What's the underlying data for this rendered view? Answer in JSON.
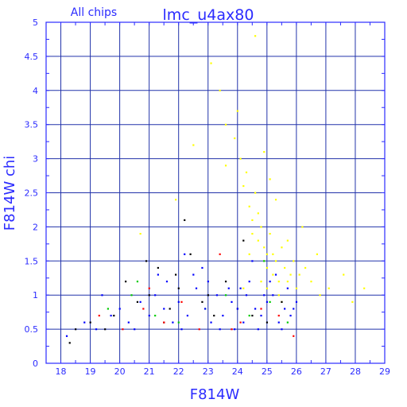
{
  "chart_data": {
    "type": "scatter",
    "title": "lmc_u4ax80",
    "subtitle": "All chips",
    "xlabel": "F814W",
    "ylabel": "F814W chi",
    "xlim": [
      17.5,
      29
    ],
    "ylim": [
      0,
      5
    ],
    "xticks": [
      "18",
      "19",
      "20",
      "21",
      "22",
      "23",
      "24",
      "25",
      "26",
      "27",
      "28",
      "29"
    ],
    "yticks": [
      "0",
      "0.5",
      "1",
      "1.5",
      "2",
      "2.5",
      "3",
      "3.5",
      "4",
      "4.5",
      "5"
    ],
    "grid": true,
    "colors": {
      "frame": "#2b2bff",
      "grid": "#2233aa",
      "series": [
        "#ffff00",
        "#000000",
        "#ff0000",
        "#00cc00",
        "#0000ff"
      ]
    },
    "series": [
      {
        "color": "#ffff00",
        "x": [
          23.1,
          23.4,
          23.6,
          23.9,
          24.1,
          24.2,
          24.3,
          24.4,
          24.5,
          24.5,
          24.6,
          24.7,
          24.7,
          24.8,
          24.9,
          24.9,
          25.0,
          25.0,
          25.1,
          25.2,
          25.2,
          25.3,
          25.4,
          25.5,
          25.6,
          25.7,
          25.8,
          25.9,
          26.0,
          26.1,
          26.3,
          26.5,
          26.8,
          27.1,
          27.6,
          27.9,
          28.3,
          24.6,
          24.9,
          25.1,
          25.3,
          24.4,
          24.8,
          25.0,
          25.4,
          25.7,
          26.2,
          23.6,
          22.5,
          21.9,
          20.7,
          24.2,
          24.0,
          25.5,
          26.7
        ],
        "y": [
          4.4,
          4.0,
          3.5,
          3.3,
          3.0,
          2.6,
          2.8,
          2.3,
          2.1,
          1.9,
          2.5,
          2.2,
          1.8,
          2.0,
          1.7,
          1.5,
          1.6,
          1.4,
          1.9,
          1.3,
          1.6,
          1.5,
          1.2,
          1.7,
          1.4,
          1.2,
          1.3,
          1.5,
          1.1,
          1.3,
          1.4,
          1.2,
          1.0,
          1.1,
          1.3,
          0.9,
          1.1,
          4.8,
          3.1,
          2.7,
          2.4,
          1.6,
          1.2,
          1.1,
          1.0,
          1.8,
          2.0,
          2.9,
          3.2,
          2.4,
          1.9,
          1.1,
          3.7,
          0.9,
          1.6
        ]
      },
      {
        "color": "#000000",
        "x": [
          18.3,
          19.0,
          19.8,
          20.2,
          20.6,
          21.0,
          21.3,
          21.7,
          22.0,
          22.4,
          22.8,
          23.2,
          23.6,
          24.0,
          24.5,
          25.0,
          25.5,
          21.5,
          21.9,
          20.9,
          18.5,
          19.5,
          22.2,
          23.0,
          24.2
        ],
        "y": [
          0.3,
          0.6,
          0.7,
          1.2,
          0.9,
          1.0,
          1.4,
          0.8,
          1.1,
          1.6,
          0.9,
          0.7,
          1.2,
          0.8,
          0.7,
          0.6,
          0.9,
          0.6,
          1.3,
          1.5,
          0.5,
          0.5,
          2.1,
          1.0,
          1.8
        ]
      },
      {
        "color": "#ff0000",
        "x": [
          19.3,
          20.1,
          20.8,
          21.5,
          22.1,
          22.7,
          23.4,
          24.1,
          24.8,
          25.4,
          25.9,
          21.0,
          23.8
        ],
        "y": [
          0.7,
          0.5,
          0.8,
          0.6,
          0.9,
          0.5,
          1.6,
          0.6,
          0.8,
          0.7,
          0.4,
          1.1,
          0.5
        ]
      },
      {
        "color": "#00cc00",
        "x": [
          19.6,
          20.4,
          21.2,
          22.0,
          22.9,
          23.6,
          24.4,
          25.1,
          25.7,
          20.6,
          24.9
        ],
        "y": [
          0.8,
          1.0,
          0.7,
          0.6,
          0.8,
          1.0,
          0.7,
          0.9,
          0.6,
          1.2,
          1.5
        ]
      },
      {
        "color": "#0000ff",
        "x": [
          18.2,
          18.8,
          19.2,
          19.7,
          20.0,
          20.3,
          20.7,
          21.0,
          21.2,
          21.5,
          21.8,
          22.0,
          22.3,
          22.6,
          22.9,
          23.1,
          23.3,
          23.5,
          23.8,
          24.0,
          24.2,
          24.4,
          24.6,
          24.8,
          25.0,
          25.2,
          25.4,
          25.6,
          25.8,
          26.0,
          20.5,
          21.3,
          22.1,
          22.8,
          23.4,
          24.1,
          24.7,
          25.3,
          25.9,
          19.4,
          21.6,
          22.5,
          23.7,
          24.3,
          25.1,
          25.7,
          22.2,
          23.0,
          24.5,
          25.5,
          23.9,
          24.9
        ],
        "y": [
          0.4,
          0.6,
          0.5,
          0.7,
          0.8,
          0.6,
          0.9,
          0.7,
          1.0,
          0.8,
          0.6,
          0.9,
          0.7,
          1.1,
          0.8,
          0.6,
          1.0,
          0.7,
          0.9,
          0.8,
          0.6,
          1.2,
          0.8,
          0.7,
          0.9,
          1.0,
          0.6,
          0.8,
          0.7,
          0.9,
          0.5,
          1.3,
          0.5,
          1.4,
          0.5,
          1.1,
          0.5,
          1.3,
          0.8,
          1.0,
          1.2,
          1.3,
          1.1,
          1.0,
          1.2,
          1.1,
          1.6,
          1.2,
          1.5,
          0.5,
          0.5,
          1.0
        ]
      }
    ]
  }
}
